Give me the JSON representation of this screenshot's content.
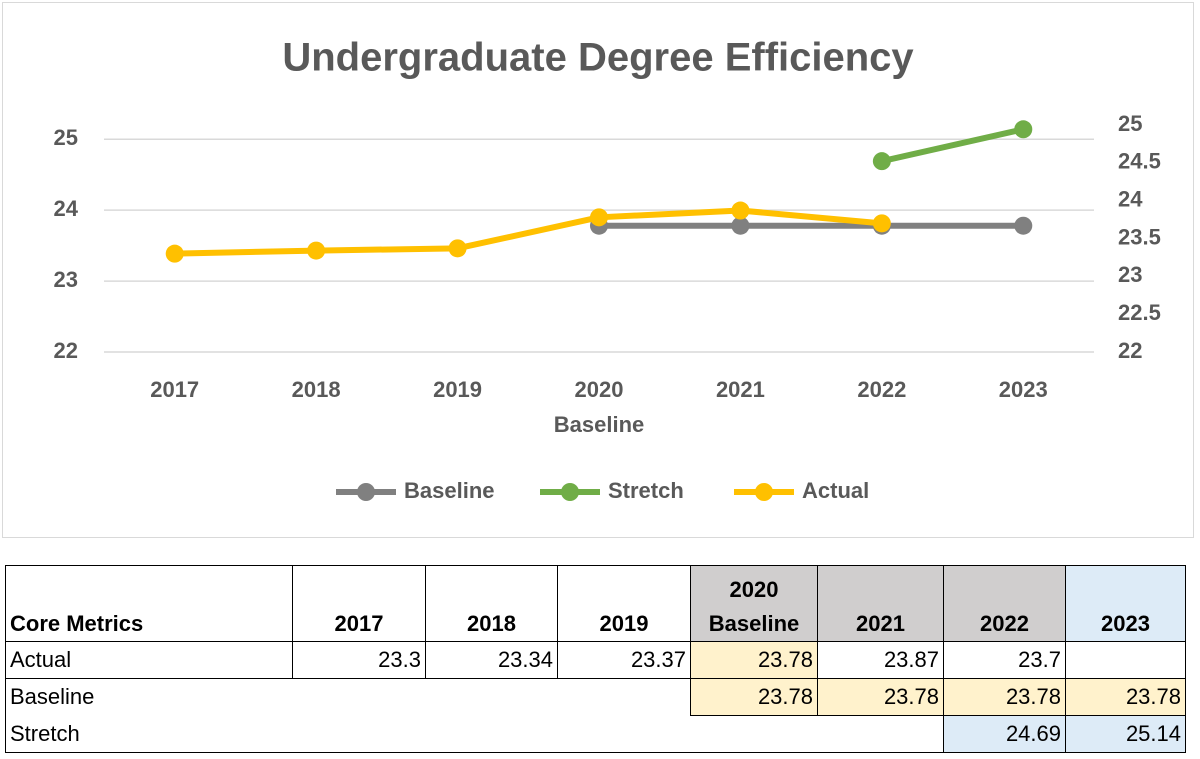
{
  "chart_data": {
    "type": "line",
    "title": "Undergraduate Degree Efficiency",
    "categories": [
      "2017",
      "2018",
      "2019",
      "2020\nBaseline",
      "2021",
      "2022",
      "2023"
    ],
    "series": [
      {
        "name": "Baseline",
        "color": "#808080",
        "values": [
          null,
          null,
          null,
          23.78,
          23.78,
          23.78,
          23.78
        ]
      },
      {
        "name": "Stretch",
        "color": "#70ad47",
        "values": [
          null,
          null,
          null,
          null,
          null,
          24.69,
          25.14
        ]
      },
      {
        "name": "Actual",
        "color": "#ffc000",
        "axis": "y2",
        "values": [
          23.3,
          23.34,
          23.37,
          23.78,
          23.87,
          23.7,
          null
        ]
      }
    ],
    "ylim": [
      22,
      25.2
    ],
    "yticks": [
      22,
      23,
      24,
      25
    ],
    "y2lim": [
      22,
      25
    ],
    "y2ticks": [
      22,
      22.5,
      23,
      23.5,
      24,
      24.5,
      25
    ],
    "grid": true,
    "legend": "bottom"
  },
  "table": {
    "header": [
      "Core Metrics",
      "2017",
      "2018",
      "2019",
      "2020\nBaseline",
      "2021",
      "2022",
      "2023"
    ],
    "rows": [
      [
        "Actual",
        23.3,
        23.34,
        23.37,
        23.78,
        23.87,
        23.7,
        null
      ],
      [
        "Baseline",
        null,
        null,
        null,
        23.78,
        23.78,
        23.78,
        23.78
      ],
      [
        "Stretch",
        null,
        null,
        null,
        null,
        null,
        24.69,
        25.14
      ]
    ]
  }
}
